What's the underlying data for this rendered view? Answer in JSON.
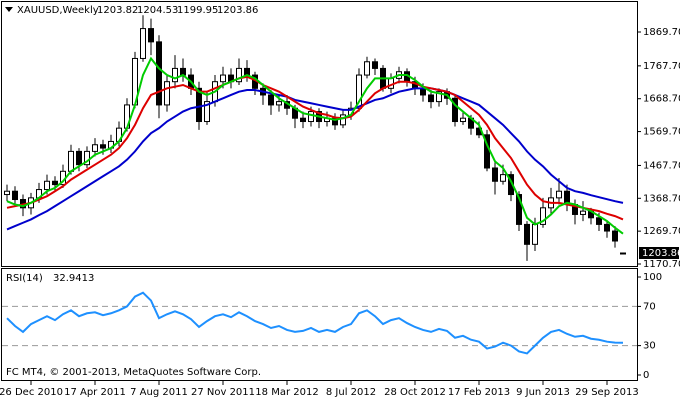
{
  "chart_data": [
    {
      "type": "candlestick",
      "title": "XAUUSD,Weekly",
      "categories": [
        null,
        null,
        null,
        "26 Dec 2010",
        null,
        null,
        null,
        null,
        null,
        null,
        null,
        "17 Apr 2011",
        null,
        null,
        null,
        null,
        null,
        null,
        null,
        "7 Aug 2011",
        null,
        null,
        null,
        null,
        null,
        null,
        null,
        "27 Nov 2011",
        null,
        null,
        null,
        null,
        null,
        null,
        null,
        "18 Mar 2012",
        null,
        null,
        null,
        null,
        null,
        null,
        null,
        "8 Jul 2012",
        null,
        null,
        null,
        null,
        null,
        null,
        null,
        "28 Oct 2012",
        null,
        null,
        null,
        null,
        null,
        null,
        null,
        "17 Feb 2013",
        null,
        null,
        null,
        null,
        null,
        null,
        null,
        "9 Jun 2013",
        null,
        null,
        null,
        null,
        null,
        null,
        null,
        "29 Sep 2013",
        null,
        null
      ],
      "open": [
        1380,
        1390,
        1365,
        1340,
        1370,
        1395,
        1420,
        1410,
        1450,
        1510,
        1470,
        1510,
        1530,
        1520,
        1540,
        1580,
        1650,
        1790,
        1880,
        1840,
        1650,
        1720,
        1760,
        1740,
        1700,
        1600,
        1660,
        1720,
        1740,
        1720,
        1760,
        1740,
        1700,
        1680,
        1650,
        1660,
        1640,
        1610,
        1600,
        1630,
        1600,
        1610,
        1590,
        1620,
        1640,
        1740,
        1780,
        1760,
        1700,
        1730,
        1750,
        1720,
        1700,
        1680,
        1660,
        1690,
        1670,
        1600,
        1610,
        1580,
        1560,
        1460,
        1420,
        1440,
        1380,
        1290,
        1230,
        1290,
        1340,
        1370,
        1390,
        1350,
        1320,
        1330,
        1310,
        1290,
        1270,
        1203.82
      ],
      "high": [
        1410,
        1405,
        1380,
        1385,
        1415,
        1440,
        1435,
        1470,
        1530,
        1520,
        1525,
        1550,
        1545,
        1560,
        1600,
        1670,
        1810,
        1920,
        1910,
        1860,
        1740,
        1800,
        1790,
        1760,
        1720,
        1690,
        1740,
        1765,
        1760,
        1790,
        1785,
        1750,
        1715,
        1695,
        1680,
        1680,
        1650,
        1630,
        1645,
        1640,
        1630,
        1625,
        1635,
        1660,
        1760,
        1795,
        1790,
        1770,
        1745,
        1765,
        1760,
        1735,
        1715,
        1695,
        1700,
        1700,
        1680,
        1630,
        1620,
        1600,
        1575,
        1480,
        1470,
        1450,
        1390,
        1300,
        1310,
        1370,
        1400,
        1430,
        1410,
        1365,
        1360,
        1340,
        1325,
        1300,
        1285,
        1204.53
      ],
      "low": [
        1360,
        1345,
        1315,
        1320,
        1355,
        1380,
        1390,
        1400,
        1440,
        1450,
        1460,
        1495,
        1500,
        1505,
        1525,
        1570,
        1640,
        1780,
        1800,
        1610,
        1630,
        1700,
        1720,
        1680,
        1575,
        1590,
        1645,
        1700,
        1700,
        1710,
        1720,
        1680,
        1650,
        1620,
        1630,
        1620,
        1580,
        1580,
        1585,
        1580,
        1585,
        1575,
        1580,
        1605,
        1630,
        1730,
        1740,
        1690,
        1685,
        1715,
        1705,
        1680,
        1660,
        1640,
        1645,
        1650,
        1585,
        1590,
        1560,
        1550,
        1450,
        1380,
        1410,
        1360,
        1270,
        1180,
        1210,
        1280,
        1320,
        1350,
        1330,
        1290,
        1300,
        1290,
        1270,
        1250,
        1220,
        1199.95
      ],
      "close": [
        1390,
        1365,
        1340,
        1370,
        1395,
        1420,
        1410,
        1450,
        1510,
        1470,
        1510,
        1530,
        1520,
        1540,
        1580,
        1650,
        1790,
        1880,
        1840,
        1650,
        1720,
        1760,
        1740,
        1700,
        1600,
        1660,
        1720,
        1740,
        1720,
        1760,
        1740,
        1700,
        1680,
        1650,
        1660,
        1640,
        1610,
        1600,
        1630,
        1600,
        1610,
        1590,
        1620,
        1640,
        1740,
        1780,
        1760,
        1700,
        1730,
        1750,
        1720,
        1700,
        1680,
        1660,
        1690,
        1670,
        1600,
        1610,
        1580,
        1560,
        1460,
        1420,
        1440,
        1380,
        1290,
        1230,
        1290,
        1340,
        1370,
        1390,
        1350,
        1320,
        1330,
        1310,
        1290,
        1270,
        1240,
        1203.86
      ],
      "series": [
        {
          "color": "#0000cc",
          "values": [
            1275,
            1285,
            1295,
            1305,
            1318,
            1330,
            1345,
            1360,
            1375,
            1390,
            1405,
            1420,
            1435,
            1450,
            1465,
            1485,
            1510,
            1540,
            1565,
            1580,
            1600,
            1615,
            1630,
            1640,
            1645,
            1650,
            1660,
            1670,
            1680,
            1690,
            1695,
            1695,
            1690,
            1685,
            1680,
            1675,
            1665,
            1660,
            1655,
            1650,
            1645,
            1640,
            1635,
            1635,
            1645,
            1655,
            1665,
            1670,
            1680,
            1690,
            1695,
            1700,
            1700,
            1700,
            1695,
            1690,
            1680,
            1670,
            1660,
            1650,
            1630,
            1610,
            1590,
            1565,
            1540,
            1510,
            1485,
            1465,
            1440,
            1420,
            1400,
            1390,
            1385,
            1378,
            1372,
            1366,
            1360,
            1355
          ]
        },
        {
          "color": "#dd0000",
          "values": [
            1340,
            1345,
            1350,
            1355,
            1365,
            1375,
            1390,
            1405,
            1425,
            1440,
            1455,
            1470,
            1485,
            1500,
            1520,
            1550,
            1590,
            1640,
            1680,
            1690,
            1700,
            1705,
            1710,
            1700,
            1690,
            1690,
            1700,
            1710,
            1720,
            1730,
            1735,
            1725,
            1710,
            1700,
            1690,
            1675,
            1660,
            1645,
            1635,
            1625,
            1620,
            1612,
            1610,
            1615,
            1635,
            1660,
            1685,
            1700,
            1710,
            1720,
            1720,
            1715,
            1705,
            1700,
            1695,
            1690,
            1680,
            1660,
            1640,
            1620,
            1590,
            1550,
            1520,
            1490,
            1450,
            1410,
            1380,
            1360,
            1355,
            1355,
            1350,
            1345,
            1340,
            1335,
            1330,
            1322,
            1315,
            1305
          ]
        },
        {
          "color": "#00cc00",
          "values": [
            1360,
            1350,
            1345,
            1355,
            1370,
            1390,
            1400,
            1420,
            1450,
            1465,
            1480,
            1500,
            1510,
            1520,
            1540,
            1580,
            1650,
            1740,
            1790,
            1760,
            1740,
            1730,
            1740,
            1720,
            1690,
            1680,
            1690,
            1710,
            1720,
            1730,
            1740,
            1730,
            1710,
            1690,
            1670,
            1655,
            1640,
            1625,
            1620,
            1615,
            1610,
            1605,
            1610,
            1620,
            1660,
            1700,
            1730,
            1730,
            1730,
            1740,
            1740,
            1725,
            1705,
            1690,
            1685,
            1680,
            1650,
            1630,
            1610,
            1590,
            1530,
            1480,
            1460,
            1420,
            1370,
            1310,
            1290,
            1300,
            1320,
            1345,
            1355,
            1350,
            1340,
            1330,
            1315,
            1300,
            1280,
            1262
          ]
        }
      ],
      "ylim": [
        1164.7,
        1960.1
      ],
      "yticks": [
        {
          "value": 1869.7,
          "label": "1869.70"
        },
        {
          "value": 1767.7,
          "label": "1767.70"
        },
        {
          "value": 1668.7,
          "label": "1668.70"
        },
        {
          "value": 1569.7,
          "label": "1569.70"
        },
        {
          "value": 1467.7,
          "label": "1467.70"
        },
        {
          "value": 1368.7,
          "label": "1368.70"
        },
        {
          "value": 1269.7,
          "label": "1269.70"
        },
        {
          "value": 1170.7,
          "label": "1170.70"
        }
      ]
    },
    {
      "type": "line",
      "title": "RSI(14)",
      "note": "FC MT4, © 2001-2013, MetaQuotes Software Corp.",
      "series": [
        {
          "color": "#1e90ff",
          "values": [
            58,
            50,
            44,
            52,
            56,
            60,
            56,
            62,
            66,
            60,
            63,
            64,
            61,
            63,
            66,
            70,
            80,
            84,
            76,
            58,
            62,
            65,
            62,
            57,
            49,
            55,
            60,
            62,
            59,
            64,
            60,
            55,
            52,
            48,
            50,
            46,
            44,
            45,
            48,
            44,
            46,
            44,
            49,
            52,
            63,
            66,
            60,
            52,
            56,
            58,
            53,
            49,
            46,
            44,
            47,
            45,
            38,
            40,
            36,
            34,
            27,
            29,
            33,
            30,
            24,
            22,
            30,
            38,
            44,
            46,
            42,
            39,
            40,
            37,
            36,
            34,
            33,
            32.9413
          ]
        }
      ],
      "ylim": [
        -5.1,
        109.2
      ],
      "yticks": [
        100,
        70,
        30,
        0
      ],
      "levels": [
        70,
        30
      ]
    }
  ]
}
